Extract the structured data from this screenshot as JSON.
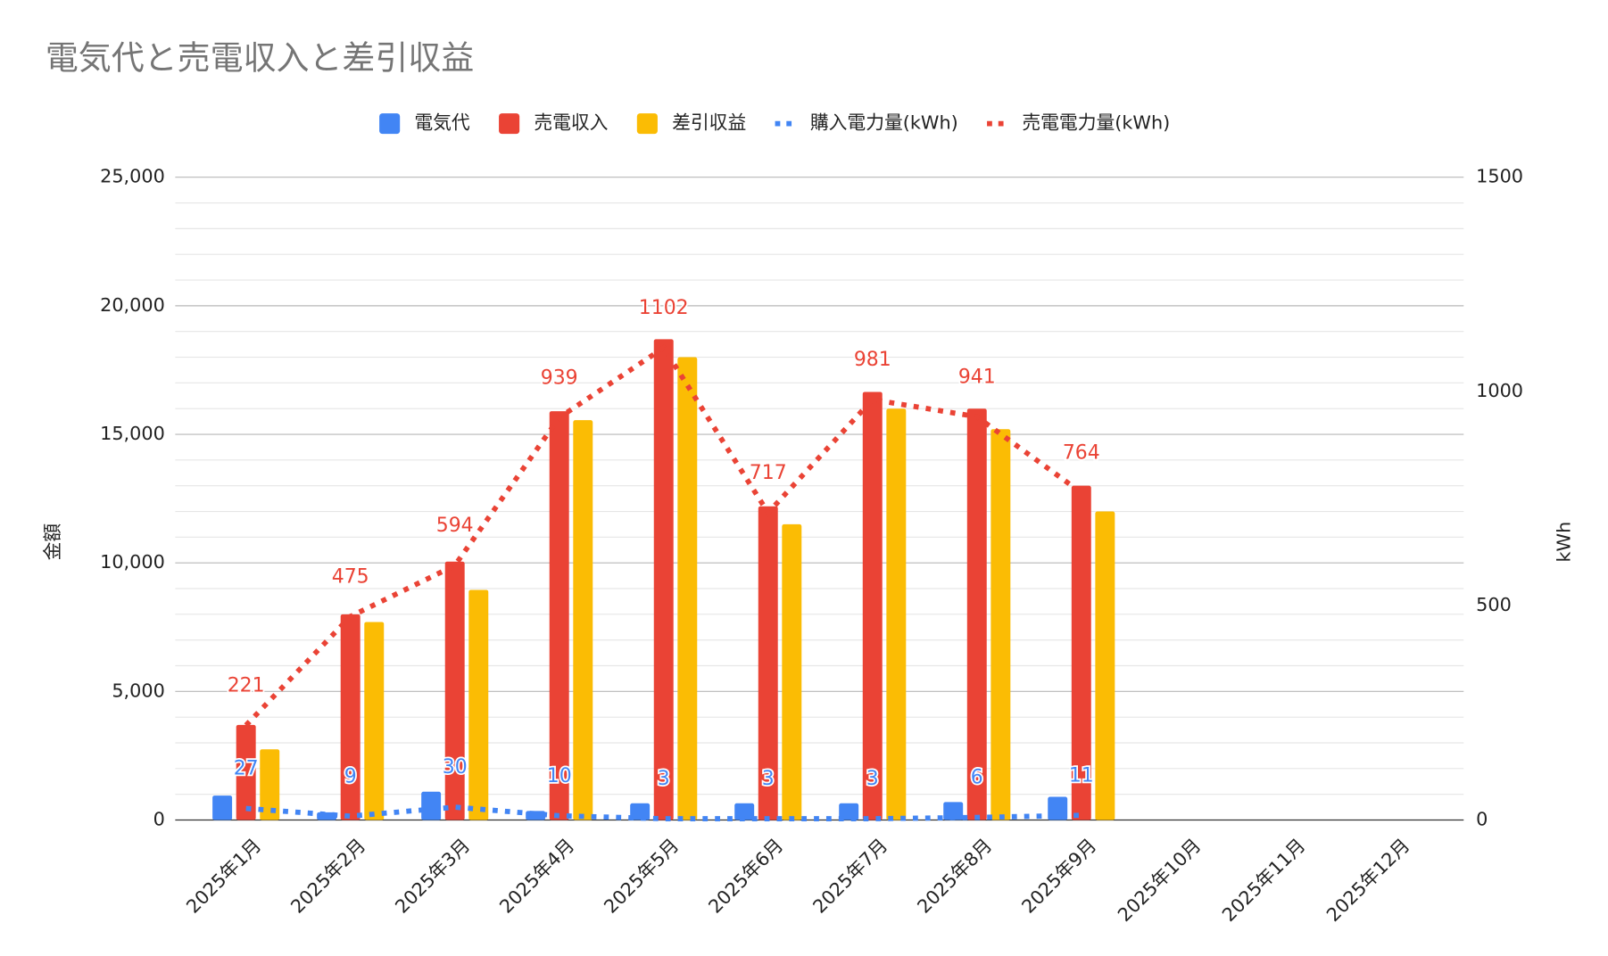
{
  "chart_data": {
    "type": "bar",
    "title": "電気代と売電収入と差引収益",
    "y_axis_label": "金額",
    "y2_axis_label": "kWh",
    "categories": [
      "2025年1月",
      "2025年2月",
      "2025年3月",
      "2025年4月",
      "2025年5月",
      "2025年6月",
      "2025年7月",
      "2025年8月",
      "2025年9月",
      "2025年10月",
      "2025年11月",
      "2025年12月"
    ],
    "series": [
      {
        "name": "電気代",
        "type": "bar",
        "color": "#4285f4",
        "values": [
          950,
          300,
          1100,
          350,
          650,
          650,
          650,
          700,
          900,
          null,
          null,
          null
        ]
      },
      {
        "name": "売電収入",
        "type": "bar",
        "color": "#ea4335",
        "values": [
          3700,
          8000,
          10050,
          15900,
          18700,
          12200,
          16650,
          16000,
          13000,
          null,
          null,
          null
        ]
      },
      {
        "name": "差引収益",
        "type": "bar",
        "color": "#fbbc04",
        "values": [
          2750,
          7700,
          8950,
          15550,
          18000,
          11500,
          16000,
          15200,
          12000,
          null,
          null,
          null
        ]
      },
      {
        "name": "購入電力量(kWh)",
        "type": "line",
        "axis": "y2",
        "color": "#4285f4",
        "dashed": true,
        "values": [
          27,
          9,
          30,
          10,
          3,
          3,
          3,
          6,
          11,
          null,
          null,
          null
        ]
      },
      {
        "name": "売電電力量(kWh)",
        "type": "line",
        "axis": "y2",
        "color": "#ea4335",
        "dashed": true,
        "values": [
          221,
          475,
          594,
          939,
          1102,
          717,
          981,
          941,
          764,
          null,
          null,
          null
        ]
      }
    ],
    "ylim": [
      0,
      25000
    ],
    "yticks": [
      0,
      {
        "value": 5000,
        "label": "5,000"
      },
      {
        "value": 10000,
        "label": "10,000"
      },
      {
        "value": 15000,
        "label": "15,000"
      },
      {
        "value": 20000,
        "label": "20,000"
      },
      {
        "value": 25000,
        "label": "25,000"
      }
    ],
    "y_minor_ticks": [
      1000,
      2000,
      3000,
      4000,
      6000,
      7000,
      8000,
      9000,
      11000,
      12000,
      13000,
      14000,
      16000,
      17000,
      18000,
      19000,
      21000,
      22000,
      23000,
      24000
    ],
    "y2lim": [
      0,
      1500
    ],
    "y2ticks": [
      0,
      500,
      1000,
      1500
    ],
    "grid": true,
    "legend": "top"
  }
}
